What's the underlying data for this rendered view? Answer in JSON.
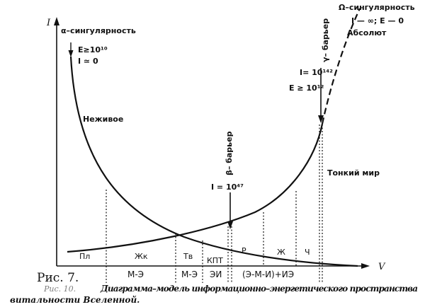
{
  "axes": {
    "y_label": "I",
    "x_label": "V"
  },
  "alpha": {
    "title": "α–сингулярность",
    "energy": "E≥10¹⁰",
    "info": "I ≃ 0"
  },
  "omega": {
    "title": "Ω–сингулярность",
    "line2": "I — ∞;  E — 0",
    "line3": "Абсолют"
  },
  "gamma": {
    "barrier": "γ– барьер",
    "info": "I= 10¹⁴²",
    "energy": "E ≥ 10¹²"
  },
  "beta": {
    "barrier": "β– барьер",
    "info": "I = 10⁴⁷"
  },
  "curve_labels": {
    "inanimate": "Неживое",
    "subtle_world": "Тонкий мир"
  },
  "band_upper": {
    "pl": "Пл",
    "zhk": "Жк",
    "tv": "Тв",
    "kpt": "КПТ",
    "r": "Р",
    "zh": "Ж",
    "ch": "Ч"
  },
  "band_lower": {
    "me1": "М-Э",
    "me2": "М-Э",
    "ei": "ЭИ",
    "emi": "(Э-М-И)+ИЭ"
  },
  "caption": {
    "label": "Рис. 7.",
    "underlay": "Рис. 10.",
    "text_line1": "Диаграмма–модель   информационно–энергетического   пространства",
    "text_line2": "витальности Вселенной."
  }
}
